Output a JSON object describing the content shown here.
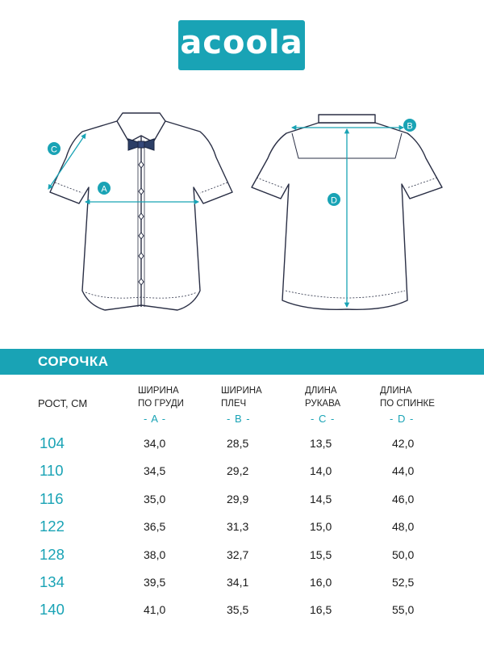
{
  "brand": {
    "logo_text": "acoola",
    "accent": "#19a3b5"
  },
  "diagram_labels": {
    "a": "A",
    "b": "B",
    "c": "C",
    "d": "D"
  },
  "table": {
    "title": "СОРОЧКА",
    "rost_header": "РОСТ, СМ",
    "columns": [
      {
        "line1": "ШИРИНА",
        "line2": "ПО ГРУДИ",
        "code": "- A -"
      },
      {
        "line1": "ШИРИНА",
        "line2": "ПЛЕЧ",
        "code": "- B -"
      },
      {
        "line1": "ДЛИНА",
        "line2": "РУКАВА",
        "code": "- C -"
      },
      {
        "line1": "ДЛИНА",
        "line2": "ПО СПИНКЕ",
        "code": "- D -"
      }
    ],
    "rows": [
      {
        "size": "104",
        "a": "34,0",
        "b": "28,5",
        "c": "13,5",
        "d": "42,0"
      },
      {
        "size": "110",
        "a": "34,5",
        "b": "29,2",
        "c": "14,0",
        "d": "44,0"
      },
      {
        "size": "116",
        "a": "35,0",
        "b": "29,9",
        "c": "14,5",
        "d": "46,0"
      },
      {
        "size": "122",
        "a": "36,5",
        "b": "31,3",
        "c": "15,0",
        "d": "48,0"
      },
      {
        "size": "128",
        "a": "38,0",
        "b": "32,7",
        "c": "15,5",
        "d": "50,0"
      },
      {
        "size": "134",
        "a": "39,5",
        "b": "34,1",
        "c": "16,0",
        "d": "52,5"
      },
      {
        "size": "140",
        "a": "41,0",
        "b": "35,5",
        "c": "16,5",
        "d": "55,0"
      }
    ]
  }
}
